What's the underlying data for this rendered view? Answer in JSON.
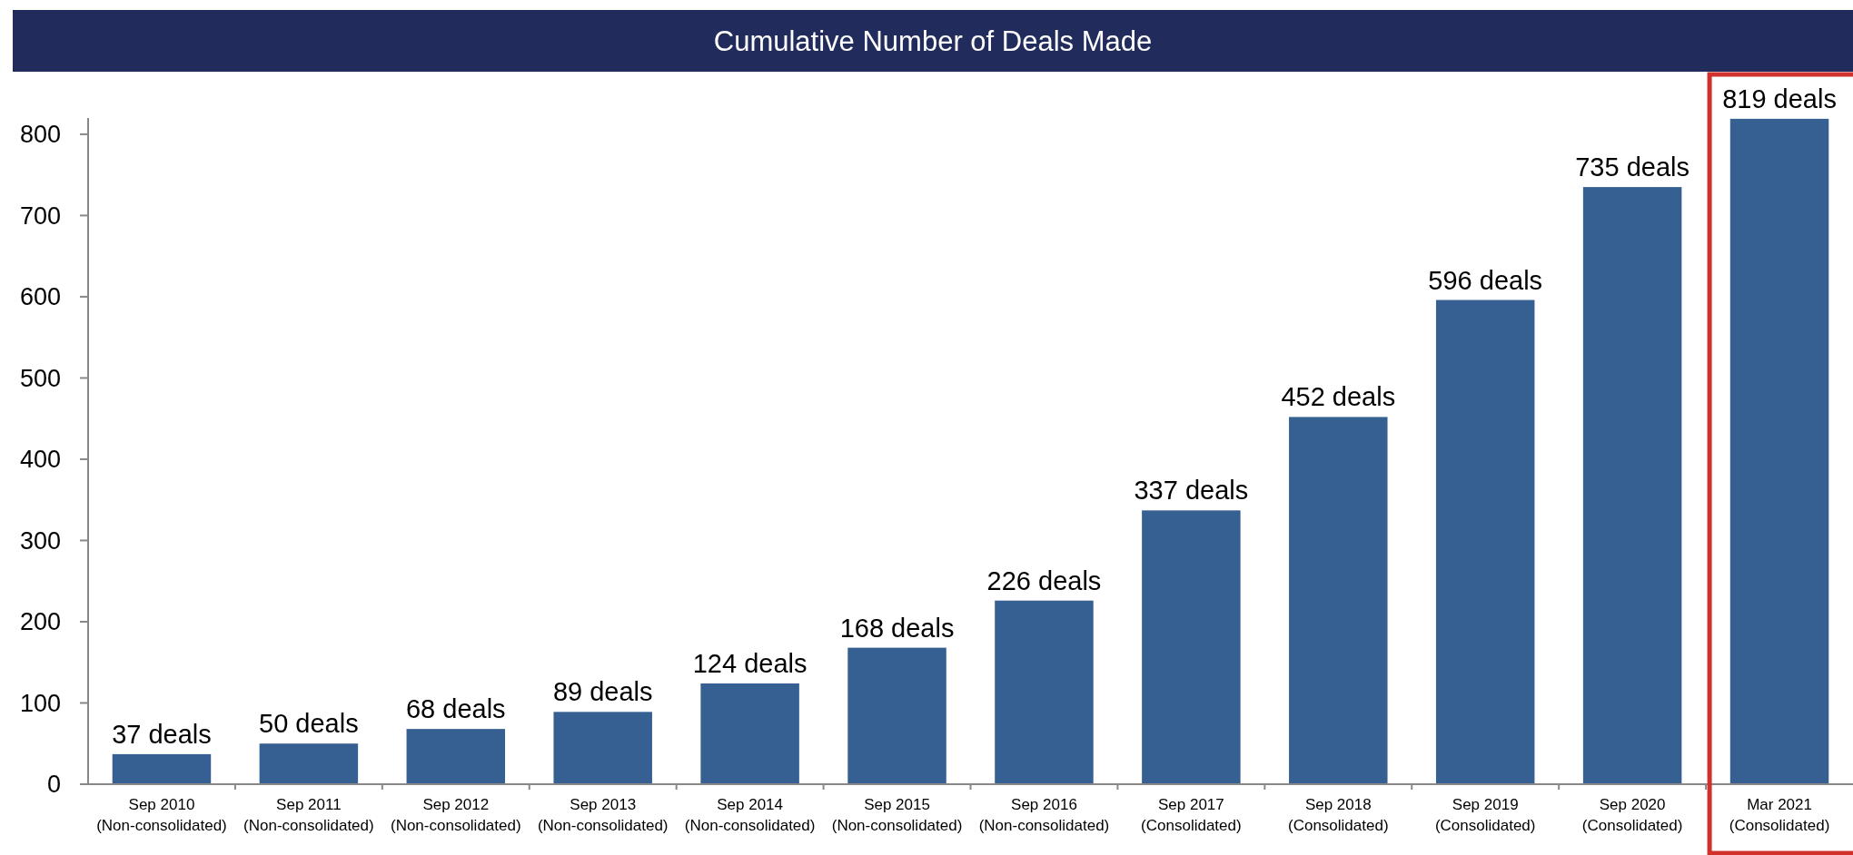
{
  "chart_data": {
    "type": "bar",
    "title": "Cumulative Number of Deals Made",
    "categories": [
      "Sep 2010\n(Non-consolidated)",
      "Sep 2011\n(Non-consolidated)",
      "Sep 2012\n(Non-consolidated)",
      "Sep 2013\n(Non-consolidated)",
      "Sep 2014\n(Non-consolidated)",
      "Sep 2015\n(Non-consolidated)",
      "Sep 2016\n(Non-consolidated)",
      "Sep 2017\n(Consolidated)",
      "Sep 2018\n(Consolidated)",
      "Sep 2019\n(Consolidated)",
      "Sep 2020\n(Consolidated)",
      "Mar 2021\n(Consolidated)"
    ],
    "values": [
      37,
      50,
      68,
      89,
      124,
      168,
      226,
      337,
      452,
      596,
      735,
      819
    ],
    "value_labels": [
      "37 deals",
      "50 deals",
      "68 deals",
      "89 deals",
      "124 deals",
      "168 deals",
      "226 deals",
      "337 deals",
      "452 deals",
      "596 deals",
      "735 deals",
      "819 deals"
    ],
    "color": "#366092",
    "ylim": [
      0,
      820
    ],
    "yticks": [
      0,
      100,
      200,
      300,
      400,
      500,
      600,
      700,
      800
    ],
    "grid": false
  }
}
